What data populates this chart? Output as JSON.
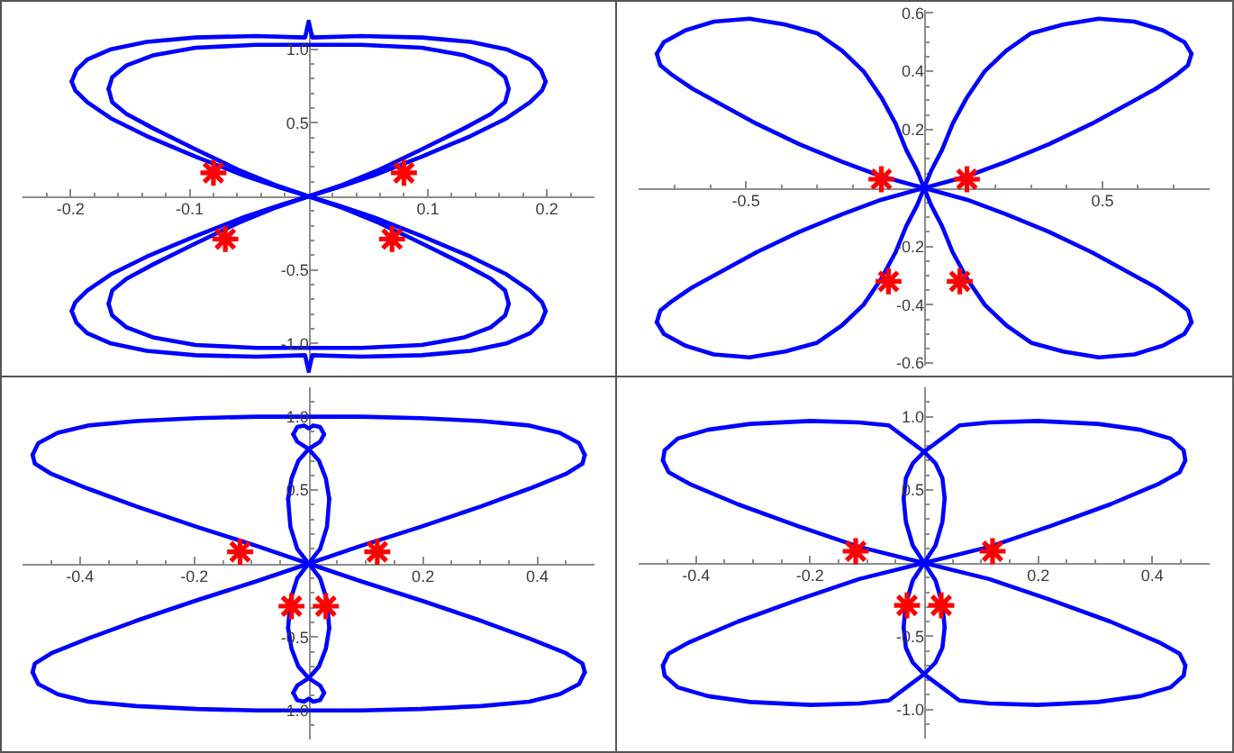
{
  "chart_data": [
    {
      "type": "line",
      "xlim": [
        -0.24,
        0.24
      ],
      "ylim": [
        -1.2,
        1.2
      ],
      "xticks": [
        {
          "value": -0.22,
          "label": null
        },
        -0.2,
        {
          "value": -0.18,
          "label": null
        },
        {
          "value": -0.16,
          "label": null
        },
        {
          "value": -0.14,
          "label": null
        },
        {
          "value": -0.12,
          "label": null
        },
        -0.1,
        {
          "value": -0.08,
          "label": null
        },
        {
          "value": -0.06,
          "label": null
        },
        {
          "value": -0.04,
          "label": null
        },
        {
          "value": -0.02,
          "label": null
        },
        {
          "value": 0.02,
          "label": null
        },
        {
          "value": 0.04,
          "label": null
        },
        {
          "value": 0.06,
          "label": null
        },
        {
          "value": 0.08,
          "label": null
        },
        0.1,
        {
          "value": 0.12,
          "label": null
        },
        {
          "value": 0.14,
          "label": null
        },
        {
          "value": 0.16,
          "label": null
        },
        {
          "value": 0.18,
          "label": null
        },
        0.2,
        {
          "value": 0.22,
          "label": null
        }
      ],
      "yticks": [
        {
          "value": -1.1,
          "label": null
        },
        {
          "value": -1.0,
          "label": "-1.0"
        },
        {
          "value": -0.9,
          "label": null
        },
        {
          "value": -0.8,
          "label": null
        },
        {
          "value": -0.7,
          "label": null
        },
        {
          "value": -0.6,
          "label": null
        },
        -0.5,
        {
          "value": -0.4,
          "label": null
        },
        {
          "value": -0.3,
          "label": null
        },
        {
          "value": -0.2,
          "label": null
        },
        {
          "value": -0.1,
          "label": null
        },
        {
          "value": 0.1,
          "label": null
        },
        {
          "value": 0.2,
          "label": null
        },
        {
          "value": 0.3,
          "label": null
        },
        {
          "value": 0.4,
          "label": null
        },
        0.5,
        {
          "value": 0.6,
          "label": null
        },
        {
          "value": 0.7,
          "label": null
        },
        {
          "value": 0.8,
          "label": null
        },
        {
          "value": 0.9,
          "label": null
        },
        {
          "value": 1.0,
          "label": "1.0"
        },
        {
          "value": 1.1,
          "label": null
        }
      ],
      "series": [
        {
          "color": "#0000ff",
          "x": [
            -0.199,
            -0.195,
            -0.186,
            -0.166,
            -0.136,
            -0.095,
            -0.044,
            -0.003,
            0,
            0.003,
            0.044,
            0.095,
            0.136,
            0.166,
            0.186,
            0.195,
            0.199
          ],
          "values": [
            0.78,
            0.86,
            0.93,
            1.0,
            1.05,
            1.08,
            1.09,
            1.08,
            1.19,
            1.08,
            1.09,
            1.08,
            1.05,
            1.0,
            0.93,
            0.86,
            0.78
          ]
        },
        {
          "color": "#0000ff",
          "x": [
            -0.199,
            -0.196,
            -0.186,
            -0.166,
            -0.136,
            -0.095,
            -0.054,
            -0.024,
            0,
            0.024,
            0.054,
            0.095,
            0.136,
            0.166,
            0.186,
            0.196,
            0.199
          ],
          "values": [
            0.78,
            0.72,
            0.64,
            0.53,
            0.41,
            0.27,
            0.14,
            0.06,
            0,
            0.06,
            0.14,
            0.27,
            0.41,
            0.53,
            0.64,
            0.72,
            0.78
          ]
        },
        {
          "color": "#0000ff",
          "x": [
            -0.199,
            -0.196,
            -0.186,
            -0.166,
            -0.136,
            -0.095,
            -0.054,
            -0.024,
            0,
            0.024,
            0.054,
            0.095,
            0.136,
            0.166,
            0.186,
            0.196,
            0.199
          ],
          "values": [
            -0.78,
            -0.72,
            -0.64,
            -0.53,
            -0.41,
            -0.27,
            -0.14,
            -0.06,
            0,
            -0.06,
            -0.14,
            -0.27,
            -0.41,
            -0.53,
            -0.64,
            -0.72,
            -0.78
          ]
        },
        {
          "color": "#0000ff",
          "x": [
            -0.199,
            -0.195,
            -0.186,
            -0.166,
            -0.136,
            -0.095,
            -0.044,
            -0.003,
            0,
            0.003,
            0.044,
            0.095,
            0.136,
            0.166,
            0.186,
            0.195,
            0.199
          ],
          "values": [
            -0.78,
            -0.86,
            -0.93,
            -1.0,
            -1.05,
            -1.08,
            -1.09,
            -1.08,
            -1.19,
            -1.08,
            -1.09,
            -1.08,
            -1.05,
            -1.0,
            -0.93,
            -0.86,
            -0.78
          ]
        },
        {
          "color": "#0000ff",
          "x": [
            -0.168,
            -0.165,
            -0.153,
            -0.13,
            -0.095,
            -0.044,
            0,
            0.044,
            0.095,
            0.13,
            0.153,
            0.165,
            0.168
          ],
          "values": [
            0.73,
            0.81,
            0.89,
            0.96,
            1.01,
            1.03,
            1.03,
            1.03,
            1.01,
            0.96,
            0.89,
            0.81,
            0.73
          ]
        },
        {
          "color": "#0000ff",
          "x": [
            -0.168,
            -0.165,
            -0.153,
            -0.13,
            -0.095,
            -0.059,
            -0.029,
            0,
            0.029,
            0.059,
            0.095,
            0.13,
            0.153,
            0.165,
            0.168
          ],
          "values": [
            0.73,
            0.64,
            0.56,
            0.46,
            0.32,
            0.18,
            0.08,
            0,
            0.08,
            0.18,
            0.32,
            0.46,
            0.56,
            0.64,
            0.73
          ]
        },
        {
          "color": "#0000ff",
          "x": [
            -0.168,
            -0.165,
            -0.153,
            -0.13,
            -0.095,
            -0.059,
            -0.029,
            0,
            0.029,
            0.059,
            0.095,
            0.13,
            0.153,
            0.165,
            0.168
          ],
          "values": [
            -0.73,
            -0.64,
            -0.56,
            -0.46,
            -0.32,
            -0.18,
            -0.08,
            0,
            -0.08,
            -0.18,
            -0.32,
            -0.46,
            -0.56,
            -0.64,
            -0.73
          ]
        },
        {
          "color": "#0000ff",
          "x": [
            -0.168,
            -0.165,
            -0.153,
            -0.13,
            -0.095,
            -0.044,
            0,
            0.044,
            0.095,
            0.13,
            0.153,
            0.165,
            0.168
          ],
          "values": [
            -0.73,
            -0.81,
            -0.89,
            -0.96,
            -1.01,
            -1.03,
            -1.03,
            -1.03,
            -1.01,
            -0.96,
            -0.89,
            -0.81,
            -0.73
          ]
        },
        {
          "type": "scatter",
          "marker": "cross",
          "color": "#ff0000",
          "x": [
            -0.08,
            0.08,
            -0.07,
            0.07
          ],
          "values": [
            0.16,
            0.16,
            -0.29,
            -0.29
          ]
        }
      ]
    },
    {
      "type": "line",
      "xlim": [
        -0.8,
        0.8
      ],
      "ylim": [
        -0.61,
        0.61
      ],
      "xticks": [
        {
          "value": -0.7,
          "label": null
        },
        {
          "value": -0.6,
          "label": null
        },
        -0.5,
        {
          "value": -0.4,
          "label": null
        },
        {
          "value": -0.3,
          "label": null
        },
        {
          "value": -0.2,
          "label": null
        },
        {
          "value": -0.1,
          "label": null
        },
        {
          "value": 0.1,
          "label": null
        },
        {
          "value": 0.2,
          "label": null
        },
        {
          "value": 0.3,
          "label": null
        },
        {
          "value": 0.4,
          "label": null
        },
        0.5,
        {
          "value": 0.6,
          "label": null
        },
        {
          "value": 0.7,
          "label": null
        }
      ],
      "yticks": [
        -0.6,
        {
          "value": -0.55,
          "label": null
        },
        {
          "value": -0.5,
          "label": null
        },
        {
          "value": -0.45,
          "label": null
        },
        -0.4,
        {
          "value": -0.35,
          "label": null
        },
        {
          "value": -0.3,
          "label": null
        },
        {
          "value": -0.25,
          "label": null
        },
        -0.2,
        {
          "value": -0.15,
          "label": null
        },
        {
          "value": -0.1,
          "label": null
        },
        {
          "value": -0.05,
          "label": null
        },
        {
          "value": 0.05,
          "label": null
        },
        {
          "value": 0.1,
          "label": null
        },
        {
          "value": 0.15,
          "label": null
        },
        0.2,
        {
          "value": 0.25,
          "label": null
        },
        {
          "value": 0.3,
          "label": null
        },
        {
          "value": 0.35,
          "label": null
        },
        0.4,
        {
          "value": 0.45,
          "label": null
        },
        {
          "value": 0.5,
          "label": null
        },
        {
          "value": 0.55,
          "label": null
        },
        0.6
      ],
      "series": [
        {
          "color": "#0000ff",
          "x": [
            -0.75,
            -0.73,
            -0.67,
            -0.59,
            -0.49,
            -0.39,
            -0.3,
            -0.23,
            -0.17,
            -0.12,
            -0.08,
            -0.05,
            -0.02,
            0,
            0.02,
            0.05,
            0.08,
            0.12,
            0.17,
            0.23,
            0.3,
            0.39,
            0.49,
            0.59,
            0.67,
            0.73,
            0.75
          ],
          "values": [
            0.46,
            0.5,
            0.54,
            0.57,
            0.58,
            0.56,
            0.53,
            0.47,
            0.4,
            0.31,
            0.22,
            0.13,
            0.06,
            0,
            0.06,
            0.13,
            0.22,
            0.31,
            0.4,
            0.47,
            0.53,
            0.56,
            0.58,
            0.57,
            0.54,
            0.5,
            0.46
          ]
        },
        {
          "color": "#0000ff",
          "x": [
            -0.75,
            -0.74,
            -0.71,
            -0.65,
            -0.59,
            -0.47,
            -0.35,
            -0.23,
            -0.12,
            0,
            0.12,
            0.23,
            0.35,
            0.47,
            0.59,
            0.65,
            0.71,
            0.74,
            0.75
          ],
          "values": [
            0.46,
            0.42,
            0.39,
            0.34,
            0.3,
            0.22,
            0.15,
            0.09,
            0.04,
            0,
            0.04,
            0.09,
            0.15,
            0.22,
            0.3,
            0.34,
            0.39,
            0.42,
            0.46
          ]
        },
        {
          "color": "#0000ff",
          "x": [
            -0.75,
            -0.74,
            -0.71,
            -0.65,
            -0.59,
            -0.47,
            -0.35,
            -0.23,
            -0.12,
            0,
            0.12,
            0.23,
            0.35,
            0.47,
            0.59,
            0.65,
            0.71,
            0.74,
            0.75
          ],
          "values": [
            -0.46,
            -0.42,
            -0.39,
            -0.34,
            -0.3,
            -0.22,
            -0.15,
            -0.09,
            -0.04,
            0,
            -0.04,
            -0.09,
            -0.15,
            -0.22,
            -0.3,
            -0.34,
            -0.39,
            -0.42,
            -0.46
          ]
        },
        {
          "color": "#0000ff",
          "x": [
            -0.75,
            -0.73,
            -0.67,
            -0.59,
            -0.49,
            -0.39,
            -0.3,
            -0.23,
            -0.17,
            -0.12,
            -0.08,
            -0.05,
            -0.02,
            0,
            0.02,
            0.05,
            0.08,
            0.12,
            0.17,
            0.23,
            0.3,
            0.39,
            0.49,
            0.59,
            0.67,
            0.73,
            0.75
          ],
          "values": [
            -0.46,
            -0.5,
            -0.54,
            -0.57,
            -0.58,
            -0.56,
            -0.53,
            -0.47,
            -0.4,
            -0.31,
            -0.22,
            -0.13,
            -0.06,
            0,
            -0.06,
            -0.13,
            -0.22,
            -0.31,
            -0.4,
            -0.47,
            -0.53,
            -0.56,
            -0.58,
            -0.57,
            -0.54,
            -0.5,
            -0.46
          ]
        },
        {
          "type": "scatter",
          "marker": "cross",
          "color": "#ff0000",
          "x": [
            -0.12,
            0.12,
            -0.1,
            0.1
          ],
          "values": [
            0.03,
            0.03,
            -0.32,
            -0.32
          ]
        }
      ]
    },
    {
      "type": "line",
      "xlim": [
        -0.5,
        0.5
      ],
      "ylim": [
        -1.2,
        1.2
      ],
      "xticks": [
        {
          "value": -0.45,
          "label": null
        },
        -0.4,
        {
          "value": -0.35,
          "label": null
        },
        {
          "value": -0.3,
          "label": null
        },
        {
          "value": -0.25,
          "label": null
        },
        -0.2,
        {
          "value": -0.15,
          "label": null
        },
        {
          "value": -0.1,
          "label": null
        },
        {
          "value": -0.05,
          "label": null
        },
        {
          "value": 0.05,
          "label": null
        },
        {
          "value": 0.1,
          "label": null
        },
        {
          "value": 0.15,
          "label": null
        },
        0.2,
        {
          "value": 0.25,
          "label": null
        },
        {
          "value": 0.3,
          "label": null
        },
        {
          "value": 0.35,
          "label": null
        },
        0.4,
        {
          "value": 0.45,
          "label": null
        }
      ],
      "yticks": [
        {
          "value": -1.1,
          "label": null
        },
        {
          "value": -1.0,
          "label": "-1.0"
        },
        {
          "value": -0.9,
          "label": null
        },
        {
          "value": -0.8,
          "label": null
        },
        {
          "value": -0.7,
          "label": null
        },
        {
          "value": -0.6,
          "label": null
        },
        -0.5,
        {
          "value": -0.4,
          "label": null
        },
        {
          "value": -0.3,
          "label": null
        },
        {
          "value": -0.2,
          "label": null
        },
        {
          "value": -0.1,
          "label": null
        },
        {
          "value": 0.1,
          "label": null
        },
        {
          "value": 0.2,
          "label": null
        },
        {
          "value": 0.3,
          "label": null
        },
        {
          "value": 0.4,
          "label": null
        },
        0.5,
        {
          "value": 0.6,
          "label": null
        },
        {
          "value": 0.7,
          "label": null
        },
        {
          "value": 0.8,
          "label": null
        },
        {
          "value": 0.9,
          "label": null
        },
        {
          "value": 1.0,
          "label": "1.0"
        },
        {
          "value": 1.1,
          "label": null
        }
      ],
      "series": [
        {
          "color": "#0000ff",
          "x": [
            -0.483,
            -0.473,
            -0.439,
            -0.386,
            -0.302,
            -0.196,
            -0.091,
            0.091,
            0.196,
            0.302,
            0.386,
            0.439,
            0.473,
            0.483
          ],
          "values": [
            0.74,
            0.82,
            0.89,
            0.94,
            0.97,
            0.99,
            1.0,
            1.0,
            0.99,
            0.97,
            0.94,
            0.89,
            0.82,
            0.74
          ]
        },
        {
          "color": "#0000ff",
          "x": [
            -0.483,
            -0.479,
            -0.45,
            -0.386,
            -0.302,
            -0.196,
            -0.091,
            0,
            0.091,
            0.196,
            0.302,
            0.386,
            0.45,
            0.479,
            0.483
          ],
          "values": [
            0.74,
            0.68,
            0.61,
            0.51,
            0.39,
            0.25,
            0.12,
            0,
            0.12,
            0.25,
            0.39,
            0.51,
            0.61,
            0.68,
            0.74
          ]
        },
        {
          "color": "#0000ff",
          "x": [
            -0.483,
            -0.479,
            -0.45,
            -0.386,
            -0.302,
            -0.196,
            -0.091,
            0,
            0.091,
            0.196,
            0.302,
            0.386,
            0.45,
            0.479,
            0.483
          ],
          "values": [
            -0.74,
            -0.68,
            -0.61,
            -0.51,
            -0.39,
            -0.25,
            -0.12,
            0,
            -0.12,
            -0.25,
            -0.39,
            -0.51,
            -0.61,
            -0.68,
            -0.74
          ]
        },
        {
          "color": "#0000ff",
          "x": [
            -0.483,
            -0.473,
            -0.439,
            -0.386,
            -0.302,
            -0.196,
            -0.091,
            0.091,
            0.196,
            0.302,
            0.386,
            0.439,
            0.473,
            0.483
          ],
          "values": [
            -0.74,
            -0.82,
            -0.89,
            -0.94,
            -0.97,
            -0.99,
            -1.0,
            -1.0,
            -0.99,
            -0.97,
            -0.94,
            -0.89,
            -0.82,
            -0.74
          ]
        },
        {
          "color": "#0000ff",
          "x": [
            -0.036,
            -0.032,
            -0.02,
            0,
            0.02,
            0.032,
            0.036
          ],
          "values": [
            -0.44,
            -0.25,
            -0.1,
            0,
            0.1,
            0.25,
            0.44
          ]
        },
        {
          "color": "#0000ff",
          "x": [
            -0.036,
            -0.032,
            -0.02,
            0,
            0.02,
            0.032,
            0.036
          ],
          "values": [
            0.44,
            0.25,
            0.1,
            0,
            -0.1,
            -0.25,
            -0.44
          ]
        },
        {
          "color": "#0000ff",
          "x": [
            -0.036,
            -0.03,
            -0.018,
            0,
            0.02,
            0.027
          ],
          "values": [
            0.44,
            0.58,
            0.7,
            0.78,
            0.83,
            0.88
          ]
        },
        {
          "color": "#0000ff",
          "x": [
            -0.027,
            -0.02,
            0,
            0.018,
            0.03,
            0.036
          ],
          "values": [
            0.88,
            0.83,
            0.78,
            0.7,
            0.58,
            0.44
          ]
        },
        {
          "color": "#0000ff",
          "x": [
            -0.027,
            -0.02,
            -0.008,
            0,
            0.008,
            0.02,
            0.027
          ],
          "values": [
            0.88,
            0.93,
            0.94,
            0.92,
            0.94,
            0.93,
            0.88
          ]
        },
        {
          "color": "#0000ff",
          "x": [
            -0.036,
            -0.03,
            -0.018,
            0,
            0.02,
            0.027
          ],
          "values": [
            -0.44,
            -0.58,
            -0.7,
            -0.78,
            -0.83,
            -0.88
          ]
        },
        {
          "color": "#0000ff",
          "x": [
            -0.027,
            -0.02,
            0,
            0.018,
            0.03,
            0.036
          ],
          "values": [
            -0.88,
            -0.83,
            -0.78,
            -0.7,
            -0.58,
            -0.44
          ]
        },
        {
          "color": "#0000ff",
          "x": [
            -0.027,
            -0.02,
            -0.008,
            0,
            0.008,
            0.02,
            0.027
          ],
          "values": [
            -0.88,
            -0.93,
            -0.94,
            -0.92,
            -0.94,
            -0.93,
            -0.88
          ]
        },
        {
          "type": "scatter",
          "marker": "cross",
          "color": "#ff0000",
          "x": [
            -0.12,
            0.12,
            -0.03,
            0.03
          ],
          "values": [
            0.08,
            0.08,
            -0.29,
            -0.29
          ]
        }
      ]
    },
    {
      "type": "line",
      "xlim": [
        -0.5,
        0.5
      ],
      "ylim": [
        -1.2,
        1.2
      ],
      "xticks": [
        {
          "value": -0.45,
          "label": null
        },
        -0.4,
        {
          "value": -0.35,
          "label": null
        },
        {
          "value": -0.3,
          "label": null
        },
        {
          "value": -0.25,
          "label": null
        },
        -0.2,
        {
          "value": -0.15,
          "label": null
        },
        {
          "value": -0.1,
          "label": null
        },
        {
          "value": -0.05,
          "label": null
        },
        {
          "value": 0.05,
          "label": null
        },
        {
          "value": 0.1,
          "label": null
        },
        {
          "value": 0.15,
          "label": null
        },
        0.2,
        {
          "value": 0.25,
          "label": null
        },
        {
          "value": 0.3,
          "label": null
        },
        {
          "value": 0.35,
          "label": null
        },
        0.4,
        {
          "value": 0.45,
          "label": null
        }
      ],
      "yticks": [
        {
          "value": -1.1,
          "label": null
        },
        {
          "value": -1.0,
          "label": "-1.0"
        },
        {
          "value": -0.9,
          "label": null
        },
        {
          "value": -0.8,
          "label": null
        },
        {
          "value": -0.7,
          "label": null
        },
        {
          "value": -0.6,
          "label": null
        },
        -0.5,
        {
          "value": -0.4,
          "label": null
        },
        {
          "value": -0.3,
          "label": null
        },
        {
          "value": -0.2,
          "label": null
        },
        {
          "value": -0.1,
          "label": null
        },
        {
          "value": 0.1,
          "label": null
        },
        {
          "value": 0.2,
          "label": null
        },
        {
          "value": 0.3,
          "label": null
        },
        {
          "value": 0.4,
          "label": null
        },
        0.5,
        {
          "value": 0.6,
          "label": null
        },
        {
          "value": 0.7,
          "label": null
        },
        {
          "value": 0.8,
          "label": null
        },
        {
          "value": 0.9,
          "label": null
        },
        {
          "value": 1.0,
          "label": "1.0"
        },
        {
          "value": 1.1,
          "label": null
        }
      ],
      "series": [
        {
          "color": "#0000ff",
          "x": [
            -0.458,
            -0.455,
            -0.432,
            -0.379,
            -0.305,
            -0.199,
            -0.114,
            -0.062,
            -0.031,
            0,
            0.02,
            0.032,
            0.036
          ],
          "values": [
            0.7,
            0.77,
            0.85,
            0.91,
            0.95,
            0.97,
            0.96,
            0.94,
            0.85,
            0.76,
            0.68,
            0.58,
            0.44
          ]
        },
        {
          "color": "#0000ff",
          "x": [
            -0.036,
            -0.032,
            -0.02,
            0,
            0.031,
            0.062,
            0.114,
            0.199,
            0.305,
            0.379,
            0.432,
            0.455,
            0.458
          ],
          "values": [
            0.44,
            0.58,
            0.68,
            0.76,
            0.85,
            0.94,
            0.96,
            0.97,
            0.95,
            0.91,
            0.85,
            0.77,
            0.7
          ]
        },
        {
          "color": "#0000ff",
          "x": [
            -0.036,
            -0.032,
            -0.02,
            0,
            0.02,
            0.032,
            0.036
          ],
          "values": [
            -0.44,
            -0.28,
            -0.12,
            0,
            0.12,
            0.28,
            0.44
          ]
        },
        {
          "color": "#0000ff",
          "x": [
            -0.036,
            -0.032,
            -0.02,
            0,
            0.02,
            0.032,
            0.036
          ],
          "values": [
            0.44,
            0.28,
            0.12,
            0,
            -0.12,
            -0.28,
            -0.44
          ]
        },
        {
          "color": "#0000ff",
          "x": [
            -0.458,
            -0.448,
            -0.411,
            -0.326,
            -0.22,
            -0.114,
            0,
            0.114,
            0.22,
            0.326,
            0.411,
            0.448,
            0.458
          ],
          "values": [
            0.7,
            0.62,
            0.54,
            0.4,
            0.25,
            0.11,
            0,
            0.11,
            0.25,
            0.4,
            0.54,
            0.62,
            0.7
          ]
        },
        {
          "color": "#0000ff",
          "x": [
            -0.458,
            -0.448,
            -0.411,
            -0.326,
            -0.22,
            -0.114,
            0,
            0.114,
            0.22,
            0.326,
            0.411,
            0.448,
            0.458
          ],
          "values": [
            -0.7,
            -0.62,
            -0.54,
            -0.4,
            -0.25,
            -0.11,
            0,
            -0.11,
            -0.25,
            -0.4,
            -0.54,
            -0.62,
            -0.7
          ]
        },
        {
          "color": "#0000ff",
          "x": [
            -0.458,
            -0.455,
            -0.432,
            -0.379,
            -0.305,
            -0.199,
            -0.114,
            -0.062,
            -0.031,
            0,
            0.02,
            0.032,
            0.036
          ],
          "values": [
            -0.7,
            -0.77,
            -0.85,
            -0.91,
            -0.95,
            -0.97,
            -0.96,
            -0.94,
            -0.85,
            -0.76,
            -0.68,
            -0.58,
            -0.44
          ]
        },
        {
          "color": "#0000ff",
          "x": [
            -0.036,
            -0.032,
            -0.02,
            0,
            0.031,
            0.062,
            0.114,
            0.199,
            0.305,
            0.379,
            0.432,
            0.455,
            0.458
          ],
          "values": [
            -0.44,
            -0.58,
            -0.68,
            -0.76,
            -0.85,
            -0.94,
            -0.96,
            -0.97,
            -0.95,
            -0.91,
            -0.85,
            -0.77,
            -0.7
          ]
        },
        {
          "type": "scatter",
          "marker": "cross",
          "color": "#ff0000",
          "x": [
            -0.12,
            0.12,
            -0.03,
            0.03
          ],
          "values": [
            0.08,
            0.08,
            -0.29,
            -0.29
          ]
        }
      ]
    }
  ]
}
